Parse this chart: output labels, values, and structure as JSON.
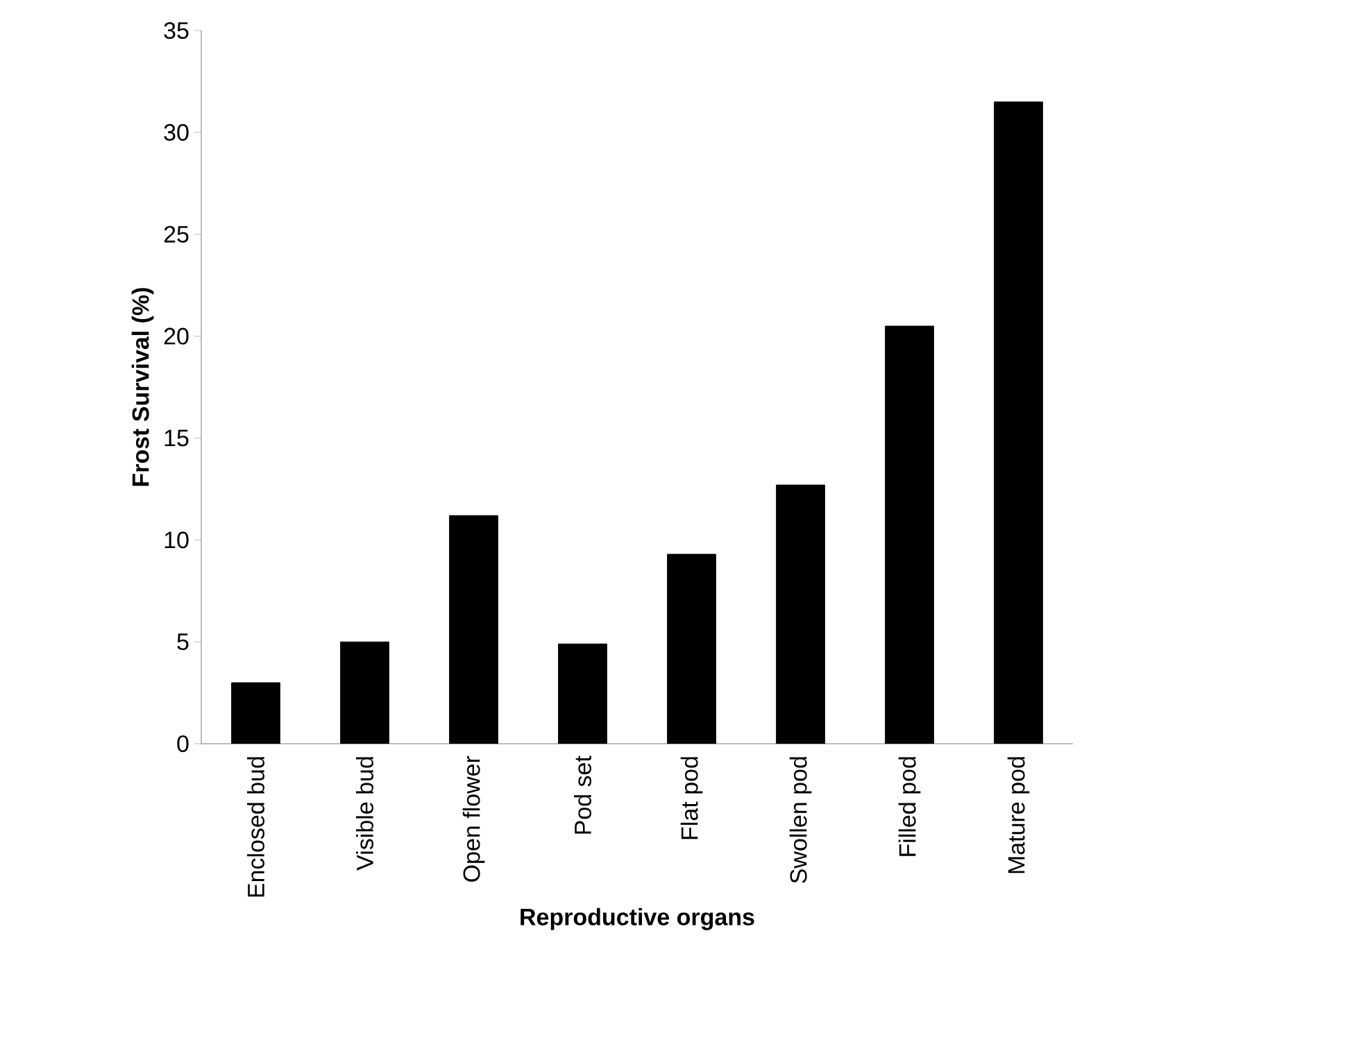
{
  "chart_data": {
    "type": "bar",
    "xlabel": "Reproductive organs",
    "ylabel": "Frost Survival (%)",
    "categories": [
      "Enclosed bud",
      "Visible bud",
      "Open flower",
      "Pod set",
      "Flat pod",
      "Swollen pod",
      "Filled pod",
      "Mature pod"
    ],
    "values": [
      3.0,
      5.0,
      11.2,
      4.9,
      9.3,
      12.7,
      20.5,
      31.5
    ],
    "color": "#000000",
    "ylim": [
      0,
      35
    ],
    "yticks": [
      0,
      5,
      10,
      15,
      20,
      25,
      30,
      35
    ],
    "grid": false
  }
}
